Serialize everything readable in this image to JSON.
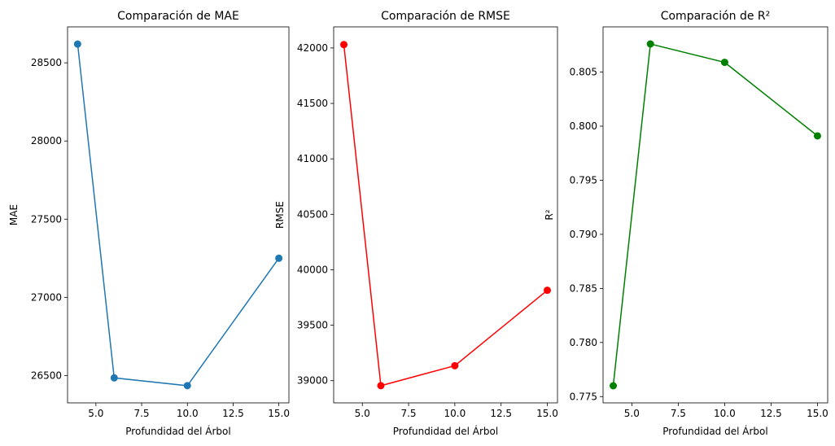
{
  "chart_data": [
    {
      "type": "line",
      "title": "Comparación de MAE",
      "xlabel": "Profundidad del Árbol",
      "ylabel": "MAE",
      "x": [
        4,
        6,
        10,
        15
      ],
      "series": [
        {
          "values": [
            28620,
            26485,
            26435,
            27250
          ],
          "color": "#1f77b4"
        }
      ],
      "xlim": [
        3.45,
        15.55
      ],
      "ylim": [
        26325,
        28730
      ],
      "xticks": [
        5.0,
        7.5,
        10.0,
        12.5,
        15.0
      ],
      "xtick_labels": [
        "5.0",
        "7.5",
        "10.0",
        "12.5",
        "15.0"
      ],
      "yticks": [
        26500,
        27000,
        27500,
        28000,
        28500
      ],
      "ytick_labels": [
        "26500",
        "27000",
        "27500",
        "28000",
        "28500"
      ],
      "marker": "circle",
      "grid": false
    },
    {
      "type": "line",
      "title": "Comparación de RMSE",
      "xlabel": "Profundidad del Árbol",
      "ylabel": "RMSE",
      "x": [
        4,
        6,
        10,
        15
      ],
      "series": [
        {
          "values": [
            42030,
            38955,
            39135,
            39815
          ],
          "color": "#ff0000"
        }
      ],
      "xlim": [
        3.45,
        15.55
      ],
      "ylim": [
        38800,
        42190
      ],
      "xticks": [
        5.0,
        7.5,
        10.0,
        12.5,
        15.0
      ],
      "xtick_labels": [
        "5.0",
        "7.5",
        "10.0",
        "12.5",
        "15.0"
      ],
      "yticks": [
        39000,
        39500,
        40000,
        40500,
        41000,
        41500,
        42000
      ],
      "ytick_labels": [
        "39000",
        "39500",
        "40000",
        "40500",
        "41000",
        "41500",
        "42000"
      ],
      "marker": "circle",
      "grid": false
    },
    {
      "type": "line",
      "title": "Comparación de R²",
      "xlabel": "Profundidad del Árbol",
      "ylabel": "R²",
      "x": [
        4,
        6,
        10,
        15
      ],
      "series": [
        {
          "values": [
            0.776,
            0.8076,
            0.8059,
            0.7991
          ],
          "color": "#008000"
        }
      ],
      "xlim": [
        3.45,
        15.55
      ],
      "ylim": [
        0.77442,
        0.80918
      ],
      "xticks": [
        5.0,
        7.5,
        10.0,
        12.5,
        15.0
      ],
      "xtick_labels": [
        "5.0",
        "7.5",
        "10.0",
        "12.5",
        "15.0"
      ],
      "yticks": [
        0.775,
        0.78,
        0.785,
        0.79,
        0.795,
        0.8,
        0.805
      ],
      "ytick_labels": [
        "0.775",
        "0.780",
        "0.785",
        "0.790",
        "0.795",
        "0.800",
        "0.805"
      ],
      "marker": "circle",
      "grid": false
    }
  ]
}
